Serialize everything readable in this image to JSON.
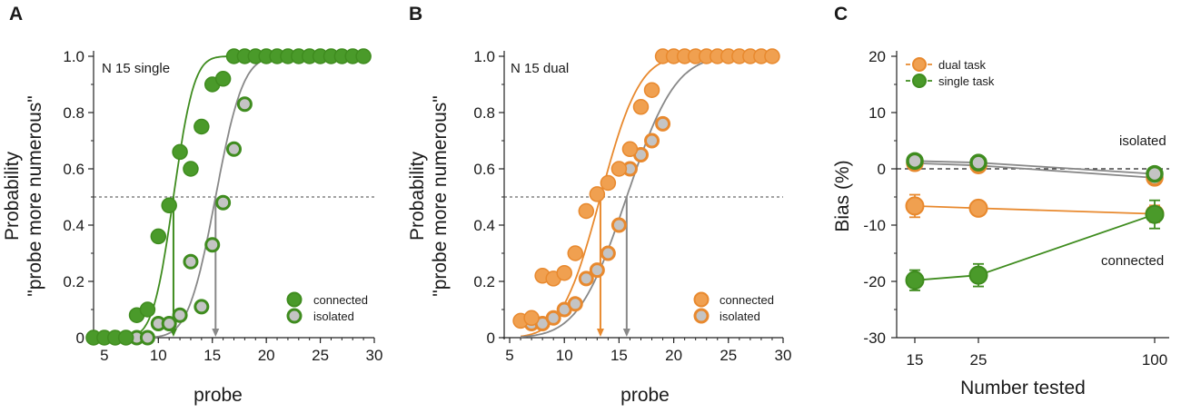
{
  "colors": {
    "green": "#3f8c1f",
    "green_fill": "#4a9a2a",
    "orange": "#e8892e",
    "orange_fill": "#f0a050",
    "gray": "#888888",
    "gray_fill": "#c4c4c4"
  },
  "chart_data": [
    {
      "type": "scatter",
      "panel": "A",
      "annotation": "N 15 single",
      "xlabel": "probe",
      "ylabel_line1": "Probability",
      "ylabel_line2": "\"probe more numerous\"",
      "xlim": [
        4,
        30
      ],
      "ylim": [
        0,
        1
      ],
      "xticks": [
        "5",
        "10",
        "15",
        "20",
        "25",
        "30"
      ],
      "yticks": [
        "0",
        "0.2",
        "0.4",
        "0.6",
        "0.8",
        "1.0"
      ],
      "reference_y": 0.5,
      "legend": [
        {
          "label": "connected",
          "style": "connected"
        },
        {
          "label": "isolated",
          "style": "isolated"
        }
      ],
      "series": [
        {
          "name": "connected",
          "color": "#3f8c1f",
          "x": [
            4,
            5,
            6,
            7,
            8,
            9,
            10,
            11,
            12,
            13,
            14,
            15,
            16,
            17,
            18,
            19,
            20,
            21,
            22,
            23,
            24,
            25,
            26,
            27,
            28,
            29
          ],
          "y": [
            0,
            0,
            0,
            0,
            0.08,
            0.1,
            0.36,
            0.47,
            0.66,
            0.6,
            0.75,
            0.9,
            0.92,
            1,
            1,
            1,
            1,
            1,
            1,
            1,
            1,
            1,
            1,
            1,
            1,
            1
          ],
          "pse": 11.4,
          "fit_width": 1.5
        },
        {
          "name": "isolated",
          "color": "#888888",
          "x": [
            4,
            5,
            6,
            7,
            8,
            9,
            10,
            11,
            12,
            13,
            14,
            15,
            16,
            17,
            18,
            19,
            20,
            21,
            22,
            23,
            24,
            25,
            26,
            27,
            28,
            29
          ],
          "y": [
            0,
            0,
            0,
            0,
            0,
            0,
            0.05,
            0.05,
            0.08,
            0.27,
            0.11,
            0.33,
            0.48,
            0.67,
            0.83,
            1,
            1,
            1,
            1,
            1,
            1,
            1,
            1,
            1,
            1,
            1
          ],
          "pse": 15.3,
          "fit_width": 2.0
        }
      ]
    },
    {
      "type": "scatter",
      "panel": "B",
      "annotation": "N 15 dual",
      "xlabel": "probe",
      "ylabel_line1": "Probability",
      "ylabel_line2": "\"probe more numerous\"",
      "xlim": [
        4.5,
        30
      ],
      "ylim": [
        0,
        1
      ],
      "xticks": [
        "5",
        "10",
        "15",
        "20",
        "25",
        "30"
      ],
      "yticks": [
        "0",
        "0.2",
        "0.4",
        "0.6",
        "0.8",
        "1.0"
      ],
      "reference_y": 0.5,
      "legend": [
        {
          "label": "connected",
          "style": "connected"
        },
        {
          "label": "isolated",
          "style": "isolated"
        }
      ],
      "series": [
        {
          "name": "connected",
          "color": "#e8892e",
          "x": [
            6,
            7,
            8,
            9,
            10,
            11,
            12,
            13,
            14,
            15,
            16,
            17,
            18,
            19,
            20,
            21,
            22,
            23,
            24,
            25,
            26,
            27,
            28,
            29
          ],
          "y": [
            0.06,
            0.07,
            0.22,
            0.21,
            0.23,
            0.3,
            0.45,
            0.51,
            0.55,
            0.6,
            0.67,
            0.82,
            0.88,
            1,
            1,
            1,
            1,
            1,
            1,
            1,
            1,
            1,
            1,
            1
          ],
          "pse": 13.3,
          "fit_width": 2.8
        },
        {
          "name": "isolated",
          "color": "#888888",
          "x": [
            7,
            8,
            9,
            10,
            11,
            12,
            13,
            14,
            15,
            16,
            17,
            18,
            19,
            20,
            21,
            22,
            23,
            24,
            25,
            26,
            27,
            28
          ],
          "y": [
            0.05,
            0.05,
            0.07,
            0.1,
            0.12,
            0.21,
            0.24,
            0.3,
            0.4,
            0.6,
            0.65,
            0.7,
            0.76,
            1,
            1,
            1,
            1,
            1,
            1,
            1,
            1,
            1
          ],
          "pse": 15.7,
          "fit_width": 3.5
        }
      ]
    },
    {
      "type": "line",
      "panel": "C",
      "xlabel": "Number tested",
      "ylabel": "Bias (%)",
      "categories": [
        "15",
        "25",
        "100"
      ],
      "ylim": [
        -30,
        20
      ],
      "yticks": [
        "20",
        "10",
        "0",
        "-10",
        "-20",
        "-30"
      ],
      "reference_y": 0,
      "legend": [
        {
          "label": "dual task",
          "color": "#e8892e"
        },
        {
          "label": "single task",
          "color": "#3f8c1f"
        }
      ],
      "annotations": [
        "isolated",
        "connected"
      ],
      "series": [
        {
          "name": "dual task connected",
          "color": "#e8892e",
          "values": [
            -6.6,
            -7.0,
            -8.0
          ],
          "errors": [
            2.0,
            0.7,
            1.5
          ]
        },
        {
          "name": "single task connected",
          "color": "#3f8c1f",
          "values": [
            -19.8,
            -18.9,
            -8.1
          ],
          "errors": [
            1.8,
            2.0,
            2.5
          ]
        },
        {
          "name": "dual task isolated",
          "color": "#e8892e",
          "values": [
            1.0,
            0.6,
            -1.6
          ],
          "errors": [
            1.0,
            1.0,
            1.0
          ]
        },
        {
          "name": "single task isolated",
          "color": "#3f8c1f",
          "values": [
            1.4,
            1.1,
            -0.9
          ],
          "errors": [
            1.0,
            1.0,
            1.0
          ]
        }
      ]
    }
  ]
}
